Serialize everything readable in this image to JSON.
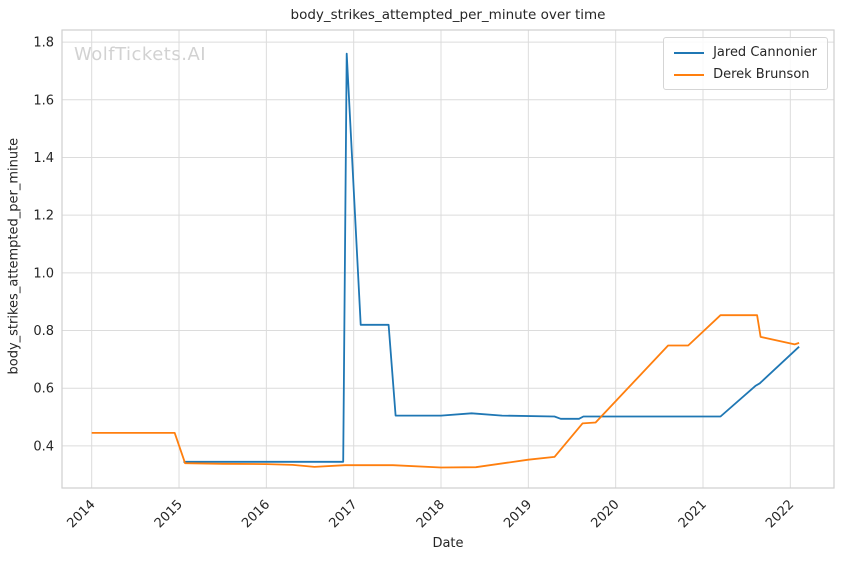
{
  "watermark": "WolfTickets.AI",
  "chart_data": {
    "type": "line",
    "title": "body_strikes_attempted_per_minute over time",
    "xlabel": "Date",
    "ylabel": "body_strikes_attempted_per_minute",
    "grid": true,
    "legend_position": "upper right",
    "xlim": [
      2013.66,
      2022.5
    ],
    "ylim": [
      0.254,
      1.842
    ],
    "xticks": [
      2014,
      2015,
      2016,
      2017,
      2018,
      2019,
      2020,
      2021,
      2022
    ],
    "yticks": [
      0.4,
      0.6,
      0.8,
      1.0,
      1.2,
      1.4,
      1.6,
      1.8
    ],
    "series": [
      {
        "name": "Jared Cannonier",
        "color": "#1f77b4",
        "points": [
          [
            2015.05,
            0.345
          ],
          [
            2016.0,
            0.345
          ],
          [
            2016.6,
            0.345
          ],
          [
            2016.88,
            0.345
          ],
          [
            2016.92,
            1.76
          ],
          [
            2017.08,
            0.82
          ],
          [
            2017.4,
            0.82
          ],
          [
            2017.48,
            0.505
          ],
          [
            2018.0,
            0.505
          ],
          [
            2018.35,
            0.513
          ],
          [
            2018.7,
            0.505
          ],
          [
            2019.3,
            0.502
          ],
          [
            2019.37,
            0.494
          ],
          [
            2019.58,
            0.494
          ],
          [
            2019.63,
            0.502
          ],
          [
            2020.3,
            0.502
          ],
          [
            2021.2,
            0.502
          ],
          [
            2021.6,
            0.608
          ],
          [
            2021.65,
            0.617
          ],
          [
            2022.1,
            0.744
          ]
        ]
      },
      {
        "name": "Derek Brunson",
        "color": "#ff7f0e",
        "points": [
          [
            2014.0,
            0.445
          ],
          [
            2014.95,
            0.445
          ],
          [
            2015.07,
            0.34
          ],
          [
            2015.5,
            0.338
          ],
          [
            2016.0,
            0.337
          ],
          [
            2016.3,
            0.334
          ],
          [
            2016.55,
            0.327
          ],
          [
            2016.9,
            0.333
          ],
          [
            2017.45,
            0.333
          ],
          [
            2018.0,
            0.325
          ],
          [
            2018.4,
            0.326
          ],
          [
            2019.0,
            0.352
          ],
          [
            2019.3,
            0.362
          ],
          [
            2019.62,
            0.478
          ],
          [
            2019.77,
            0.481
          ],
          [
            2020.6,
            0.748
          ],
          [
            2020.83,
            0.748
          ],
          [
            2021.2,
            0.853
          ],
          [
            2021.62,
            0.853
          ],
          [
            2021.66,
            0.778
          ],
          [
            2022.05,
            0.752
          ],
          [
            2022.1,
            0.757
          ]
        ]
      }
    ]
  }
}
